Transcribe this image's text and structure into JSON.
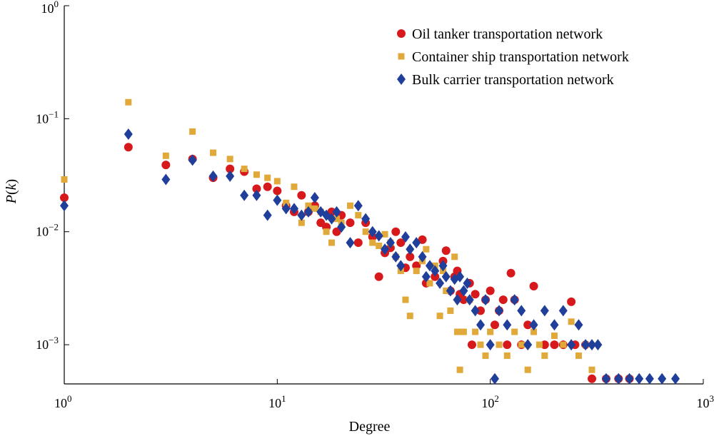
{
  "chart_data": {
    "type": "scatter",
    "title": "",
    "xlabel": "Degree",
    "ylabel": "P(k)",
    "xscale": "log",
    "yscale": "log",
    "xlim": [
      1,
      1000
    ],
    "ylim": [
      0.00045,
      1
    ],
    "x_ticks": [
      {
        "value": 1,
        "label": "10^0"
      },
      {
        "value": 10,
        "label": "10^1"
      },
      {
        "value": 100,
        "label": "10^2"
      },
      {
        "value": 1000,
        "label": "10^3"
      }
    ],
    "y_ticks": [
      {
        "value": 0.001,
        "label": "10^-3"
      },
      {
        "value": 0.01,
        "label": "10^-2"
      },
      {
        "value": 0.1,
        "label": "10^-1"
      },
      {
        "value": 1,
        "label": "10^0"
      }
    ],
    "legend_position": "top-right",
    "grid": false,
    "series": [
      {
        "name": "Oil tanker transportation network",
        "marker": "circle",
        "color": "#d7191c",
        "points": [
          [
            1,
            0.02
          ],
          [
            2,
            0.056
          ],
          [
            3,
            0.039
          ],
          [
            4,
            0.044
          ],
          [
            5,
            0.03
          ],
          [
            6,
            0.036
          ],
          [
            7,
            0.034
          ],
          [
            8,
            0.024
          ],
          [
            9,
            0.025
          ],
          [
            10,
            0.023
          ],
          [
            11,
            0.017
          ],
          [
            12,
            0.015
          ],
          [
            13,
            0.021
          ],
          [
            14,
            0.015
          ],
          [
            15,
            0.017
          ],
          [
            16,
            0.012
          ],
          [
            17,
            0.011
          ],
          [
            18,
            0.015
          ],
          [
            19,
            0.01
          ],
          [
            20,
            0.014
          ],
          [
            22,
            0.012
          ],
          [
            24,
            0.008
          ],
          [
            26,
            0.012
          ],
          [
            28,
            0.009
          ],
          [
            30,
            0.004
          ],
          [
            32,
            0.0065
          ],
          [
            34,
            0.0072
          ],
          [
            36,
            0.01
          ],
          [
            38,
            0.008
          ],
          [
            40,
            0.0048
          ],
          [
            42,
            0.006
          ],
          [
            45,
            0.005
          ],
          [
            48,
            0.0085
          ],
          [
            50,
            0.0035
          ],
          [
            55,
            0.004
          ],
          [
            60,
            0.0055
          ],
          [
            62,
            0.0068
          ],
          [
            65,
            0.003
          ],
          [
            68,
            0.004
          ],
          [
            70,
            0.0045
          ],
          [
            72,
            0.0028
          ],
          [
            75,
            0.0025
          ],
          [
            80,
            0.0035
          ],
          [
            82,
            0.001
          ],
          [
            85,
            0.0028
          ],
          [
            90,
            0.002
          ],
          [
            95,
            0.0025
          ],
          [
            100,
            0.003
          ],
          [
            105,
            0.0015
          ],
          [
            110,
            0.002
          ],
          [
            115,
            0.0025
          ],
          [
            120,
            0.001
          ],
          [
            125,
            0.0043
          ],
          [
            130,
            0.0025
          ],
          [
            140,
            0.001
          ],
          [
            150,
            0.0015
          ],
          [
            160,
            0.0033
          ],
          [
            180,
            0.001
          ],
          [
            200,
            0.001
          ],
          [
            220,
            0.001
          ],
          [
            240,
            0.0024
          ],
          [
            250,
            0.001
          ],
          [
            280,
            0.001
          ],
          [
            300,
            0.0005
          ],
          [
            350,
            0.0005
          ],
          [
            400,
            0.0005
          ],
          [
            450,
            0.0005
          ]
        ]
      },
      {
        "name": "Container ship transportation network",
        "marker": "square",
        "color": "#e0a93a",
        "points": [
          [
            1,
            0.029
          ],
          [
            2,
            0.14
          ],
          [
            3,
            0.047
          ],
          [
            4,
            0.077
          ],
          [
            5,
            0.05
          ],
          [
            6,
            0.044
          ],
          [
            7,
            0.036
          ],
          [
            8,
            0.032
          ],
          [
            9,
            0.03
          ],
          [
            10,
            0.028
          ],
          [
            11,
            0.018
          ],
          [
            12,
            0.025
          ],
          [
            13,
            0.012
          ],
          [
            14,
            0.017
          ],
          [
            15,
            0.016
          ],
          [
            16,
            0.015
          ],
          [
            17,
            0.01
          ],
          [
            18,
            0.008
          ],
          [
            19,
            0.013
          ],
          [
            20,
            0.012
          ],
          [
            22,
            0.017
          ],
          [
            24,
            0.014
          ],
          [
            26,
            0.01
          ],
          [
            28,
            0.008
          ],
          [
            30,
            0.0075
          ],
          [
            32,
            0.0095
          ],
          [
            34,
            0.008
          ],
          [
            36,
            0.006
          ],
          [
            38,
            0.0045
          ],
          [
            40,
            0.0025
          ],
          [
            42,
            0.0018
          ],
          [
            45,
            0.0045
          ],
          [
            48,
            0.0055
          ],
          [
            50,
            0.007
          ],
          [
            52,
            0.0035
          ],
          [
            55,
            0.005
          ],
          [
            58,
            0.0018
          ],
          [
            60,
            0.0045
          ],
          [
            62,
            0.003
          ],
          [
            65,
            0.002
          ],
          [
            68,
            0.006
          ],
          [
            70,
            0.0013
          ],
          [
            72,
            0.0006
          ],
          [
            75,
            0.0013
          ],
          [
            80,
            0.0025
          ],
          [
            85,
            0.0013
          ],
          [
            90,
            0.001
          ],
          [
            95,
            0.0008
          ],
          [
            100,
            0.0013
          ],
          [
            110,
            0.001
          ],
          [
            120,
            0.0008
          ],
          [
            130,
            0.0013
          ],
          [
            140,
            0.001
          ],
          [
            150,
            0.0006
          ],
          [
            160,
            0.0013
          ],
          [
            170,
            0.001
          ],
          [
            180,
            0.0008
          ],
          [
            200,
            0.0012
          ],
          [
            220,
            0.001
          ],
          [
            240,
            0.0016
          ],
          [
            260,
            0.0008
          ],
          [
            280,
            0.001
          ],
          [
            300,
            0.0006
          ]
        ]
      },
      {
        "name": "Bulk carrier transportation network",
        "marker": "diamond",
        "color": "#1f3f9b",
        "points": [
          [
            1,
            0.017
          ],
          [
            2,
            0.073
          ],
          [
            3,
            0.029
          ],
          [
            4,
            0.043
          ],
          [
            5,
            0.031
          ],
          [
            6,
            0.031
          ],
          [
            7,
            0.021
          ],
          [
            8,
            0.021
          ],
          [
            9,
            0.014
          ],
          [
            10,
            0.019
          ],
          [
            11,
            0.016
          ],
          [
            12,
            0.016
          ],
          [
            13,
            0.014
          ],
          [
            14,
            0.015
          ],
          [
            15,
            0.02
          ],
          [
            16,
            0.015
          ],
          [
            17,
            0.014
          ],
          [
            18,
            0.013
          ],
          [
            19,
            0.015
          ],
          [
            20,
            0.011
          ],
          [
            22,
            0.008
          ],
          [
            24,
            0.017
          ],
          [
            26,
            0.013
          ],
          [
            28,
            0.01
          ],
          [
            30,
            0.0092
          ],
          [
            32,
            0.007
          ],
          [
            34,
            0.008
          ],
          [
            36,
            0.006
          ],
          [
            38,
            0.005
          ],
          [
            40,
            0.009
          ],
          [
            42,
            0.007
          ],
          [
            45,
            0.008
          ],
          [
            48,
            0.006
          ],
          [
            50,
            0.004
          ],
          [
            52,
            0.005
          ],
          [
            55,
            0.0045
          ],
          [
            58,
            0.0035
          ],
          [
            60,
            0.005
          ],
          [
            62,
            0.004
          ],
          [
            65,
            0.003
          ],
          [
            68,
            0.0038
          ],
          [
            70,
            0.0025
          ],
          [
            72,
            0.004
          ],
          [
            75,
            0.003
          ],
          [
            78,
            0.0035
          ],
          [
            80,
            0.0025
          ],
          [
            85,
            0.002
          ],
          [
            90,
            0.0015
          ],
          [
            95,
            0.0025
          ],
          [
            100,
            0.001
          ],
          [
            105,
            0.0005
          ],
          [
            110,
            0.002
          ],
          [
            120,
            0.0015
          ],
          [
            130,
            0.0025
          ],
          [
            140,
            0.002
          ],
          [
            150,
            0.001
          ],
          [
            160,
            0.0015
          ],
          [
            180,
            0.002
          ],
          [
            200,
            0.0015
          ],
          [
            220,
            0.002
          ],
          [
            240,
            0.001
          ],
          [
            260,
            0.0015
          ],
          [
            280,
            0.001
          ],
          [
            300,
            0.001
          ],
          [
            320,
            0.001
          ],
          [
            350,
            0.0005
          ],
          [
            400,
            0.0005
          ],
          [
            450,
            0.0005
          ],
          [
            500,
            0.0005
          ],
          [
            560,
            0.0005
          ],
          [
            640,
            0.0005
          ],
          [
            740,
            0.0005
          ]
        ]
      }
    ]
  }
}
